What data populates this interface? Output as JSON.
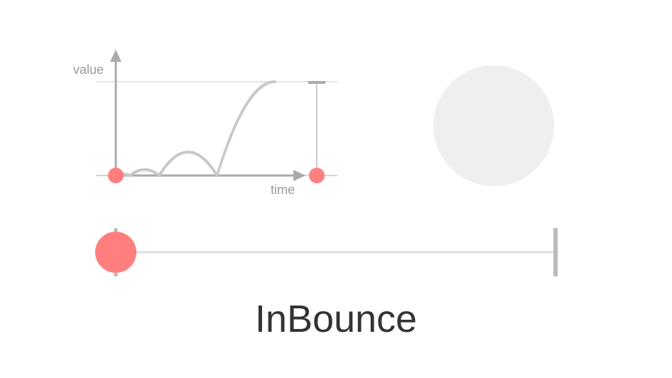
{
  "easing_name": "InBounce",
  "axes": {
    "y_label": "value",
    "x_label": "time"
  },
  "curve": {
    "function": "easeInBounce",
    "progress": 0
  },
  "colors": {
    "accent": "#ff7f7f",
    "curve": "#c8c8c8",
    "axis": "#aaaaaa",
    "track": "#dddddd",
    "preview": "#efefef",
    "title": "#333333"
  },
  "icons": {
    "slider_handle": "circle",
    "slider_end": "vertical-bar"
  }
}
